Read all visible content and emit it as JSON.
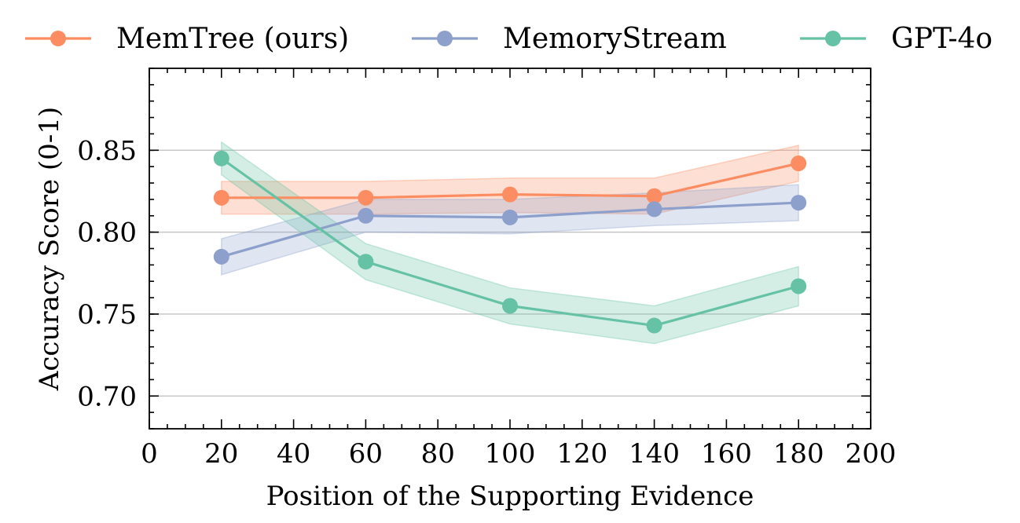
{
  "chart_data": {
    "type": "line",
    "xlabel": "Position of the Supporting Evidence",
    "ylabel": "Accuracy Score (0-1)",
    "xlim": [
      0,
      200
    ],
    "ylim": [
      0.68,
      0.9
    ],
    "xticks": [
      0,
      20,
      40,
      60,
      80,
      100,
      120,
      140,
      160,
      180,
      200
    ],
    "yticks": [
      0.7,
      0.75,
      0.8,
      0.85
    ],
    "xtick_labels": [
      "0",
      "20",
      "40",
      "60",
      "80",
      "100",
      "120",
      "140",
      "160",
      "180",
      "200"
    ],
    "ytick_labels": [
      "0.70",
      "0.75",
      "0.80",
      "0.85"
    ],
    "grid": "horizontal",
    "legend_position": "top, outside",
    "x": [
      20,
      60,
      100,
      140,
      180
    ],
    "series": [
      {
        "name": "MemTree (ours)",
        "color": "#fc8d62",
        "values": [
          0.821,
          0.821,
          0.823,
          0.822,
          0.842
        ],
        "lower": [
          0.811,
          0.811,
          0.812,
          0.811,
          0.831
        ],
        "upper": [
          0.831,
          0.831,
          0.833,
          0.833,
          0.853
        ]
      },
      {
        "name": "MemoryStream",
        "color": "#8da0cb",
        "values": [
          0.785,
          0.81,
          0.809,
          0.814,
          0.818
        ],
        "lower": [
          0.774,
          0.8,
          0.799,
          0.804,
          0.807
        ],
        "upper": [
          0.796,
          0.82,
          0.82,
          0.824,
          0.829
        ]
      },
      {
        "name": "GPT-4o",
        "color": "#66c2a5",
        "values": [
          0.845,
          0.782,
          0.755,
          0.743,
          0.767
        ],
        "lower": [
          0.835,
          0.771,
          0.744,
          0.732,
          0.755
        ],
        "upper": [
          0.855,
          0.793,
          0.766,
          0.755,
          0.779
        ]
      }
    ]
  }
}
